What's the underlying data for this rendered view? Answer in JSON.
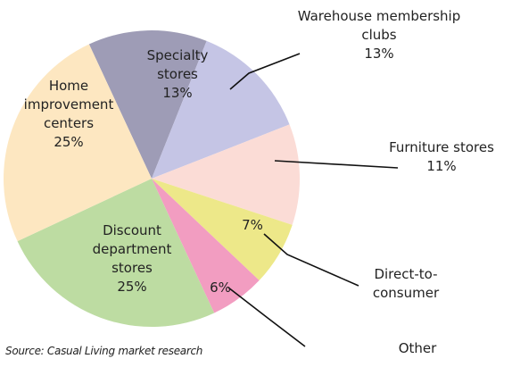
{
  "chart_data": {
    "type": "pie",
    "categories": [
      "Specialty stores",
      "Warehouse membership clubs",
      "Furniture stores",
      "Direct-to-consumer",
      "Other",
      "Discount department stores",
      "Home improvement centers"
    ],
    "values": [
      13,
      13,
      11,
      7,
      6,
      25,
      25
    ],
    "value_labels": [
      "13%",
      "13%",
      "11%",
      "7%",
      "6%",
      "25%",
      "25%"
    ],
    "colors": [
      "#9e9cb6",
      "#c5c5e5",
      "#fbdcd6",
      "#ede889",
      "#f29dc1",
      "#bddca2",
      "#fde7c1"
    ],
    "source": "Source: Casual Living market research"
  }
}
